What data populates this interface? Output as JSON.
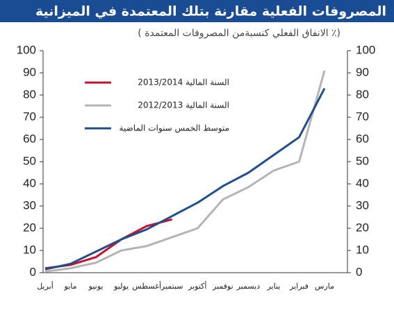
{
  "chart_data": {
    "type": "line",
    "title": "المصروفات الفعلية مقارنة بتلك المعتمدة في الميزانية",
    "subtitle": "(٪ الانفاق الفعلي كنسبةمن المصروفات المعتمدة )",
    "categories": [
      "أبريل",
      "مايو",
      "يونيو",
      "يوليو",
      "أغسطس",
      "سبتمبر",
      "أكتوبر",
      "نوفمبر",
      "ديسمبر",
      "يناير",
      "فبراير",
      "مارس"
    ],
    "series": [
      {
        "name": "السنة المالية 2013/2014",
        "color": "#c8102e",
        "values": [
          2,
          3.5,
          7,
          15,
          21,
          24,
          null,
          null,
          null,
          null,
          null,
          null
        ]
      },
      {
        "name": "السنة المالية 2012/2013",
        "color": "#b4b4b4",
        "values": [
          0.5,
          2,
          4.5,
          10,
          12,
          16,
          20,
          33,
          38.5,
          46,
          50,
          91
        ]
      },
      {
        "name": "متوسط الخمس سنوات الماضية",
        "color": "#1f4e8c",
        "values": [
          1.5,
          4,
          9.5,
          15,
          19.5,
          25.5,
          31.5,
          39,
          45,
          53,
          61,
          83
        ]
      }
    ],
    "ylim": [
      0,
      100
    ],
    "yticks": [
      0,
      10,
      20,
      30,
      40,
      50,
      60,
      70,
      80,
      90,
      100
    ],
    "y2lim": [
      0,
      100
    ],
    "y2ticks": [
      0,
      10,
      20,
      30,
      40,
      50,
      60,
      70,
      80,
      90,
      100
    ],
    "grid": false
  }
}
